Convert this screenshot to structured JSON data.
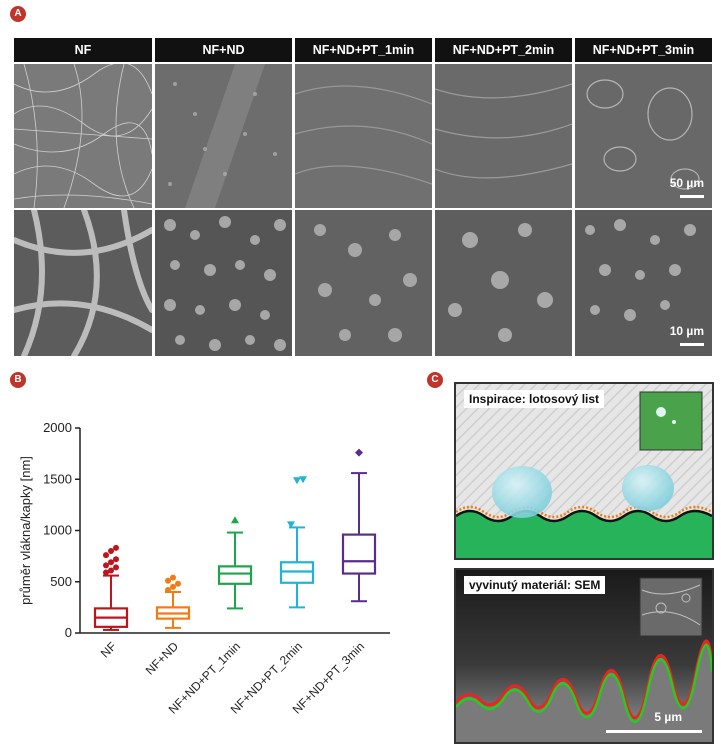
{
  "panels": {
    "a": "A",
    "b": "B",
    "c": "C"
  },
  "sem": {
    "columns": [
      "NF",
      "NF+ND",
      "NF+ND+PT_1min",
      "NF+ND+PT_2min",
      "NF+ND+PT_3min"
    ],
    "scale_top": "50 µm",
    "scale_bottom": "10 µm"
  },
  "chart_data": {
    "type": "box",
    "ylabel": "průměr vlákna/kapky [nm]",
    "ylim": [
      0,
      2000
    ],
    "yticks": [
      "0",
      "500",
      "1000",
      "1500",
      "2000"
    ],
    "categories": [
      "NF",
      "NF+ND",
      "NF+ND+PT_1min",
      "NF+ND+PT_2min",
      "NF+ND+PT_3min"
    ],
    "colors": [
      "#c0141c",
      "#f07d14",
      "#1aa64a",
      "#1fb4d6",
      "#5a2d8c"
    ],
    "boxes": [
      {
        "whisker_low": 30,
        "q1": 60,
        "median": 150,
        "q3": 240,
        "whisker_high": 560,
        "outliers": [
          590,
          610,
          640,
          660,
          690,
          720,
          760,
          800,
          830
        ]
      },
      {
        "whisker_low": 50,
        "q1": 140,
        "median": 190,
        "q3": 250,
        "whisker_high": 400,
        "outliers": [
          420,
          450,
          480,
          510,
          540
        ]
      },
      {
        "whisker_low": 240,
        "q1": 480,
        "median": 580,
        "q3": 650,
        "whisker_high": 980,
        "outliers": [
          1100
        ]
      },
      {
        "whisker_low": 250,
        "q1": 490,
        "median": 600,
        "q3": 690,
        "whisker_high": 1030,
        "outliers": [
          1060,
          1490,
          1500
        ]
      },
      {
        "whisker_low": 310,
        "q1": 580,
        "median": 700,
        "q3": 960,
        "whisker_high": 1560,
        "outliers": [
          1760
        ]
      }
    ]
  },
  "c_panel": {
    "top_label": "Inspirace: lotosový list",
    "bottom_label": "vyvinutý materiál: SEM",
    "scale": "5 µm"
  }
}
